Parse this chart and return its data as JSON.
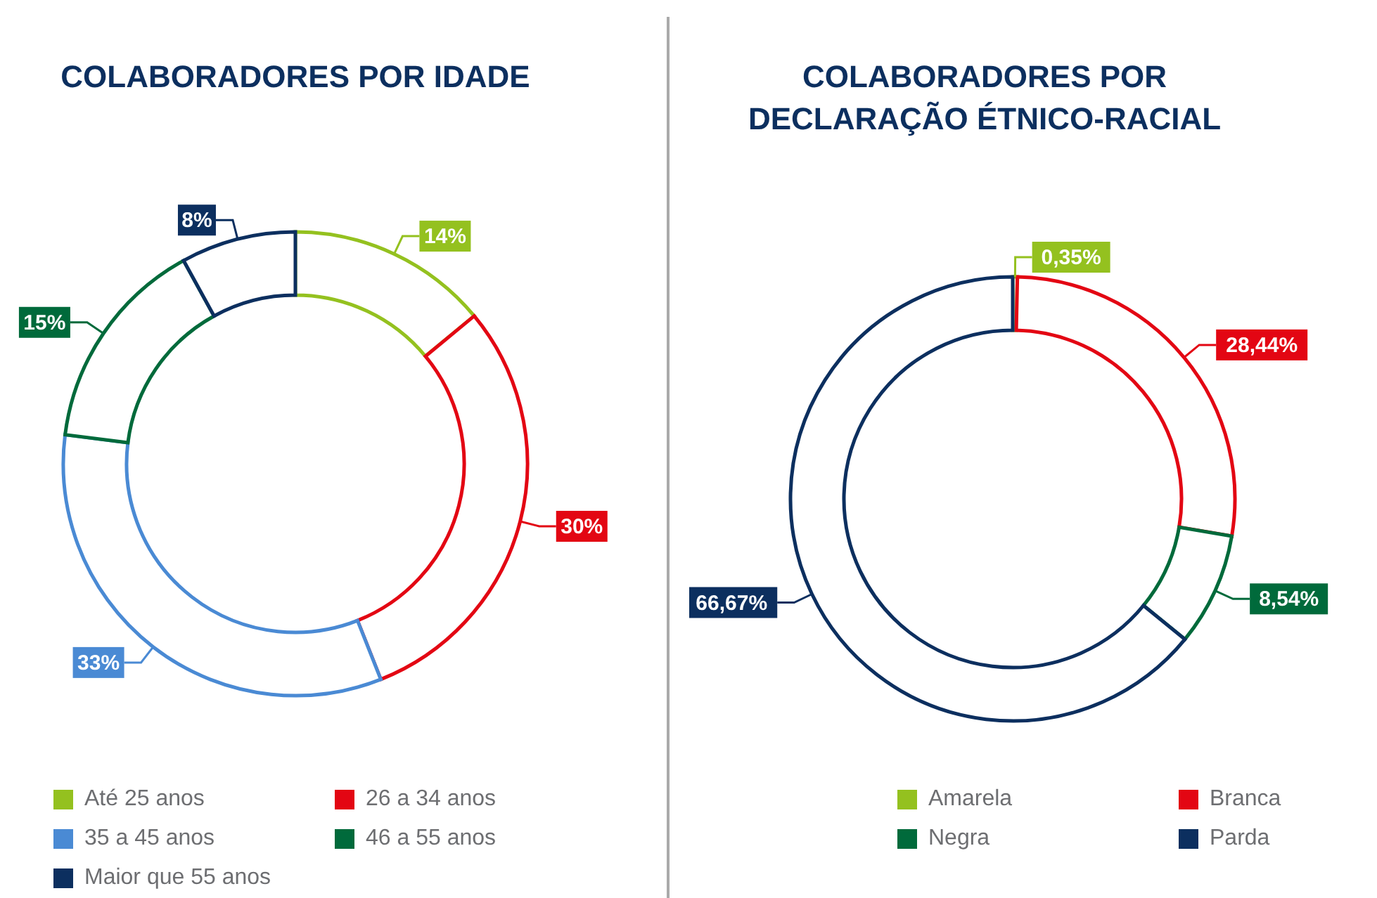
{
  "chart_data": [
    {
      "type": "donut",
      "title": "COLABORADORES POR IDADE",
      "categories": [
        "Até 25 anos",
        "26 a 34 anos",
        "35 a 45 anos",
        "46 a 55 anos",
        "Maior que 55 anos"
      ],
      "values": [
        14,
        30,
        33,
        15,
        8
      ],
      "colors": [
        "#94c11f",
        "#e30613",
        "#4a8ad4",
        "#006a3b",
        "#0c2f5f"
      ],
      "value_labels": [
        "14%",
        "30%",
        "33%",
        "15%",
        "8%"
      ],
      "legend": "bottom"
    },
    {
      "type": "donut",
      "title": "COLABORADORES POR DECLARAÇÃO ÉTNICO-RACIAL",
      "categories": [
        "Amarela",
        "Branca",
        "Negra",
        "Parda"
      ],
      "values": [
        0.35,
        28.44,
        8.54,
        66.67
      ],
      "colors": [
        "#94c11f",
        "#e30613",
        "#006a3b",
        "#0c2f5f"
      ],
      "value_labels": [
        "0,35%",
        "28,44%",
        "8,54%",
        "66,67%"
      ],
      "legend": "bottom"
    }
  ]
}
